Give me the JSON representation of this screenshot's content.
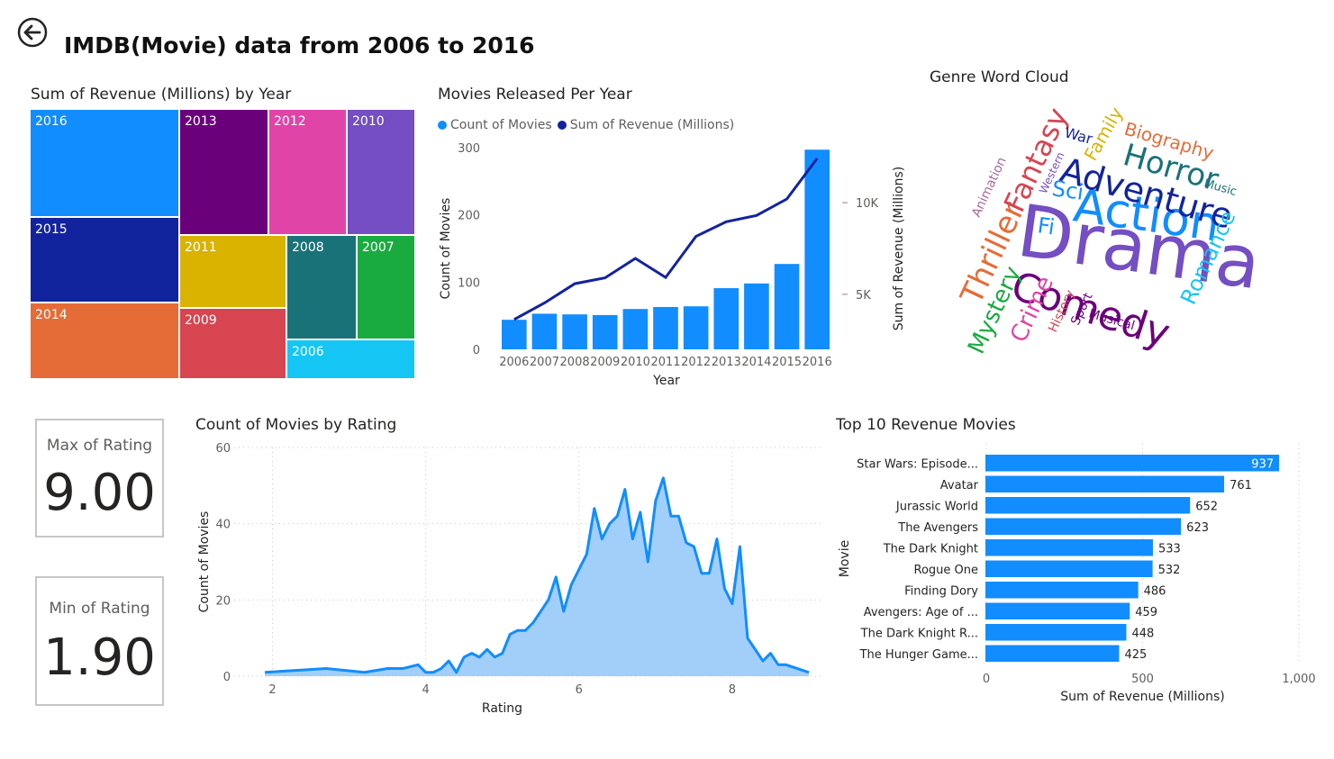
{
  "header": {
    "title": "IMDB(Movie) data from 2006 to 2016",
    "back_icon": "back-arrow-icon"
  },
  "treemap": {
    "title": "Sum of Revenue (Millions) by Year",
    "tiles": [
      {
        "label": "2016",
        "color": "#118DFF"
      },
      {
        "label": "2015",
        "color": "#12239E"
      },
      {
        "label": "2014",
        "color": "#E66C37"
      },
      {
        "label": "2013",
        "color": "#6B007B"
      },
      {
        "label": "2012",
        "color": "#E044A7"
      },
      {
        "label": "2010",
        "color": "#744EC2"
      },
      {
        "label": "2011",
        "color": "#D9B300"
      },
      {
        "label": "2009",
        "color": "#D64550"
      },
      {
        "label": "2008",
        "color": "#197278"
      },
      {
        "label": "2007",
        "color": "#1AAB40"
      },
      {
        "label": "2006",
        "color": "#15C6F4"
      }
    ]
  },
  "word_cloud": {
    "title": "Genre Word Cloud",
    "words": [
      {
        "text": "Drama",
        "color": "#744EC2"
      },
      {
        "text": "Action",
        "color": "#118DFF"
      },
      {
        "text": "Comedy",
        "color": "#6B007B"
      },
      {
        "text": "Adventure",
        "color": "#12239E"
      },
      {
        "text": "Horror",
        "color": "#197278"
      },
      {
        "text": "Thriller",
        "color": "#E66C37"
      },
      {
        "text": "Fantasy",
        "color": "#D64550"
      },
      {
        "text": "Biography",
        "color": "#E66C37"
      },
      {
        "text": "Romance",
        "color": "#15C6F4"
      },
      {
        "text": "Mystery",
        "color": "#1AAB40"
      },
      {
        "text": "Crime",
        "color": "#E044A7"
      },
      {
        "text": "Sci",
        "color": "#118DFF"
      },
      {
        "text": "Fi",
        "color": "#118DFF"
      },
      {
        "text": "Family",
        "color": "#D9B300"
      },
      {
        "text": "War",
        "color": "#12239E"
      },
      {
        "text": "Music",
        "color": "#197278"
      },
      {
        "text": "Animation",
        "color": "#A66999"
      },
      {
        "text": "Western",
        "color": "#744EC2"
      },
      {
        "text": "History",
        "color": "#D64550"
      },
      {
        "text": "Sport",
        "color": "#6B007B"
      },
      {
        "text": "Musical",
        "color": "#6B007B"
      }
    ]
  },
  "kpi": {
    "max": {
      "label": "Max of Rating",
      "value": "9.00"
    },
    "min": {
      "label": "Min of Rating",
      "value": "1.90"
    }
  },
  "chart_data": [
    {
      "type": "bar",
      "title": "Movies Released Per Year",
      "xlabel": "Year",
      "ylabel": "Count of Movies",
      "y2label": "Sum of Revenue (Millions)",
      "categories": [
        "2006",
        "2007",
        "2008",
        "2009",
        "2010",
        "2011",
        "2012",
        "2013",
        "2014",
        "2015",
        "2016"
      ],
      "series": [
        {
          "name": "Count of Movies",
          "type": "bar",
          "axis": "left",
          "color": "#118DFF",
          "values": [
            44,
            53,
            52,
            51,
            60,
            63,
            64,
            91,
            98,
            127,
            297
          ]
        },
        {
          "name": "Sum of Revenue (Millions)",
          "type": "line",
          "axis": "right",
          "color": "#12239E",
          "values": [
            3630,
            4530,
            5580,
            5900,
            6960,
            5920,
            8160,
            8960,
            9300,
            10200,
            12410
          ]
        }
      ],
      "ylim": [
        0,
        300
      ],
      "y2lim": [
        2000,
        13000
      ],
      "yticks": [
        0,
        100,
        200,
        300
      ],
      "y2ticks": [
        5000,
        10000
      ],
      "y2tick_labels": [
        "5K",
        "10K"
      ],
      "legend_position": "top-left"
    },
    {
      "type": "area",
      "title": "Count of Movies by Rating",
      "xlabel": "Rating",
      "ylabel": "Count of Movies",
      "color": "#118DFF",
      "xlim": [
        1.5,
        9.2
      ],
      "ylim": [
        0,
        60
      ],
      "xticks": [
        2,
        4,
        6,
        8
      ],
      "yticks": [
        0,
        20,
        40,
        60
      ],
      "grid": true,
      "x": [
        1.9,
        2.7,
        3.2,
        3.5,
        3.7,
        3.9,
        4.0,
        4.1,
        4.2,
        4.3,
        4.4,
        4.5,
        4.6,
        4.7,
        4.8,
        4.9,
        5.0,
        5.1,
        5.2,
        5.3,
        5.4,
        5.5,
        5.6,
        5.7,
        5.8,
        5.9,
        6.0,
        6.1,
        6.2,
        6.3,
        6.4,
        6.5,
        6.6,
        6.7,
        6.8,
        6.9,
        7.0,
        7.1,
        7.2,
        7.3,
        7.4,
        7.5,
        7.6,
        7.7,
        7.8,
        7.9,
        8.0,
        8.1,
        8.2,
        8.3,
        8.4,
        8.5,
        8.6,
        8.7,
        9.0
      ],
      "y": [
        1,
        2,
        1,
        2,
        2,
        3,
        1,
        1,
        2,
        4,
        1,
        5,
        6,
        5,
        7,
        5,
        6,
        11,
        12,
        12,
        14,
        17,
        20,
        26,
        17,
        24,
        28,
        32,
        44,
        36,
        40,
        42,
        49,
        36,
        43,
        30,
        46,
        52,
        42,
        42,
        35,
        34,
        27,
        27,
        36,
        23,
        19,
        34,
        10,
        7,
        4,
        6,
        3,
        3,
        1
      ]
    },
    {
      "type": "bar",
      "orientation": "horizontal",
      "title": "Top 10 Revenue Movies",
      "xlabel": "Sum of Revenue (Millions)",
      "ylabel": "Movie",
      "color": "#118DFF",
      "categories": [
        "Star Wars: Episode...",
        "Avatar",
        "Jurassic World",
        "The Avengers",
        "The Dark Knight",
        "Rogue One",
        "Finding Dory",
        "Avengers: Age of ...",
        "The Dark Knight R...",
        "The Hunger Game..."
      ],
      "values": [
        937,
        761,
        652,
        623,
        533,
        532,
        486,
        459,
        448,
        425
      ],
      "xlim": [
        0,
        1000
      ],
      "xticks": [
        0,
        500,
        1000
      ],
      "xtick_labels": [
        "0",
        "500",
        "1,000"
      ]
    }
  ]
}
